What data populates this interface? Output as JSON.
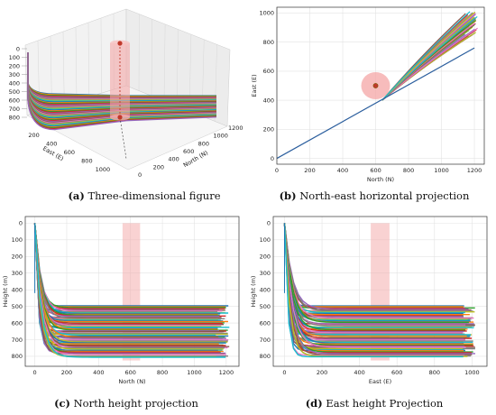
{
  "captions": [
    {
      "letter": "(a)",
      "text": "Three-dimensional figure"
    },
    {
      "letter": "(b)",
      "text": "North-east horizontal projection"
    },
    {
      "letter": "(c)",
      "text": "North height projection"
    },
    {
      "letter": "(d)",
      "text": "East height Projection"
    }
  ],
  "colors": {
    "traj_palette": [
      "#1f77b4",
      "#ff7f0e",
      "#2ca02c",
      "#d62728",
      "#9467bd",
      "#8c564b",
      "#e377c2",
      "#7f7f7f",
      "#bcbd22",
      "#17becf"
    ],
    "highlight": "#f4a6a6",
    "point": "#c0392b",
    "dash": "#c0392b"
  },
  "chart_data": [
    {
      "type": "line",
      "projection": "3d",
      "xlabel": "East (E)",
      "ylabel": "North (N)",
      "zlabel": "",
      "x_ticks": [
        "200",
        "400",
        "600",
        "800",
        "1000"
      ],
      "y_ticks": [
        "0",
        "200",
        "400",
        "600",
        "800",
        "1000",
        "1200"
      ],
      "z_ticks": [
        "0",
        "100",
        "200",
        "300",
        "400",
        "500",
        "600",
        "700",
        "800"
      ],
      "z_inverted": true
    },
    {
      "type": "line",
      "xlabel": "North (N)",
      "ylabel": "East (E)",
      "xlim": [
        0,
        1260
      ],
      "ylim": [
        -40,
        1040
      ],
      "x_ticks": [
        0,
        200,
        400,
        600,
        800,
        1000,
        1200
      ],
      "y_ticks": [
        0,
        200,
        400,
        600,
        800,
        1000
      ],
      "base_line": [
        [
          0,
          0
        ],
        [
          1200,
          760
        ]
      ],
      "fan_start": [
        640,
        400
      ],
      "fan_end_range": [
        [
          1000,
          840
        ],
        [
          1220,
          1010
        ]
      ],
      "point": [
        600,
        500
      ]
    },
    {
      "type": "line",
      "xlabel": "North (N)",
      "ylabel": "Height (m)",
      "xlim": [
        -60,
        1280
      ],
      "ylim": [
        860,
        -40
      ],
      "x_ticks": [
        0,
        200,
        400,
        600,
        800,
        1000,
        1200
      ],
      "y_ticks": [
        0,
        100,
        200,
        300,
        400,
        500,
        600,
        700,
        800
      ],
      "x_end": 1220,
      "final_heights_range": [
        500,
        805
      ],
      "band": [
        550,
        660
      ]
    },
    {
      "type": "line",
      "xlabel": "East (E)",
      "ylabel": "Height (m)",
      "xlim": [
        -60,
        1080
      ],
      "ylim": [
        860,
        -40
      ],
      "x_ticks": [
        0,
        200,
        400,
        600,
        800,
        1000
      ],
      "y_ticks": [
        0,
        100,
        200,
        300,
        400,
        500,
        600,
        700,
        800
      ],
      "x_end": 1020,
      "final_heights_range": [
        500,
        805
      ],
      "band": [
        460,
        560
      ]
    }
  ]
}
